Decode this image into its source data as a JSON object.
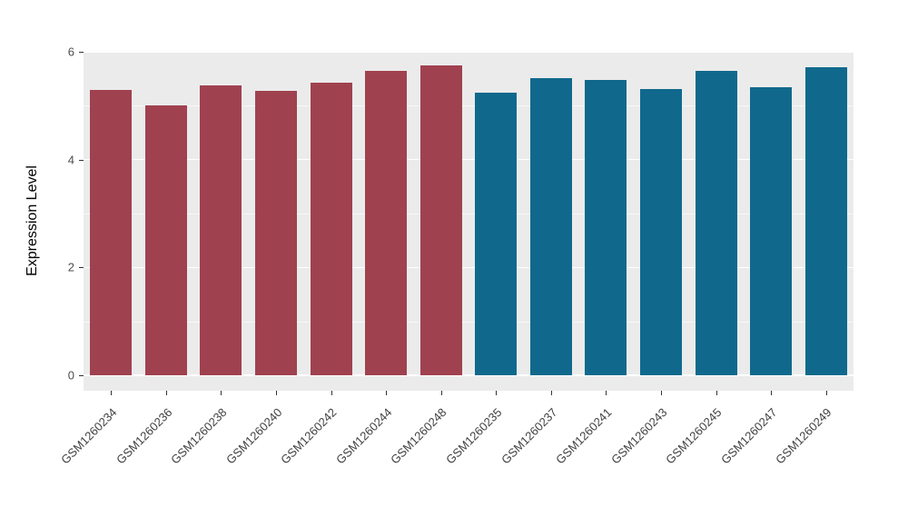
{
  "chart_data": {
    "type": "bar",
    "title": "",
    "xlabel": "",
    "ylabel": "Expression Level",
    "ylim": [
      0,
      6
    ],
    "yticks": [
      0,
      2,
      4,
      6
    ],
    "yticks_minor": [
      1,
      3,
      5
    ],
    "grid": true,
    "legend_position": "none",
    "panel_background": "#EBEBEB",
    "gridline_color": "#FFFFFF",
    "categories": [
      "GSM1260234",
      "GSM1260236",
      "GSM1260238",
      "GSM1260240",
      "GSM1260242",
      "GSM1260244",
      "GSM1260248",
      "GSM1260235",
      "GSM1260237",
      "GSM1260241",
      "GSM1260243",
      "GSM1260245",
      "GSM1260247",
      "GSM1260249"
    ],
    "values": [
      5.3,
      5.0,
      5.38,
      5.28,
      5.43,
      5.65,
      5.74,
      5.24,
      5.51,
      5.48,
      5.31,
      5.65,
      5.34,
      5.72
    ],
    "bar_colors": [
      "#A04150",
      "#A04150",
      "#A04150",
      "#A04150",
      "#A04150",
      "#A04150",
      "#A04150",
      "#10698C",
      "#10698C",
      "#10698C",
      "#10698C",
      "#10698C",
      "#10698C",
      "#10698C"
    ],
    "group_colors": {
      "left_group": "#A04150",
      "right_group": "#10698C"
    }
  }
}
